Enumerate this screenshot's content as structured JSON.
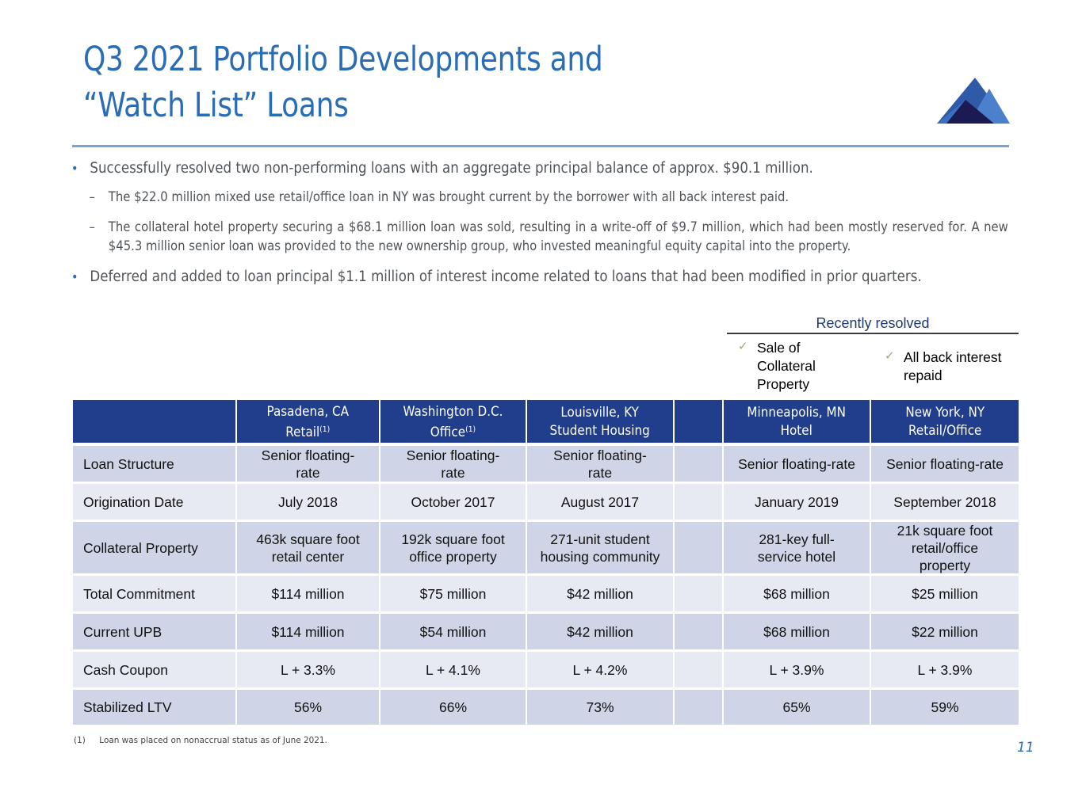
{
  "header": {
    "title_line1": "Q3 2021 Portfolio Developments and",
    "title_line2": "“Watch List” Loans",
    "logo_icon": "mountain-logo-icon"
  },
  "bullets": {
    "b1": "Successfully resolved two non-performing loans with an aggregate principal balance of approx. $90.1 million.",
    "b1_sub1": "The $22.0 million mixed use retail/office loan in NY was brought current by the borrower with all back interest paid.",
    "b1_sub2": "The collateral hotel property securing a $68.1 million loan was sold, resulting in a write-off of $9.7 million, which had been mostly reserved for.  A new $45.3 million senior loan was provided to the new ownership group, who invested meaningful equity capital into the property.",
    "b2": "Deferred and added to loan principal $1.1 million of interest income related to loans that had been modified in prior quarters.",
    "bullet_glyph": "•",
    "dash_glyph": "–"
  },
  "resolved": {
    "title": "Recently resolved",
    "check_glyph": "✓",
    "items": [
      "Sale of Collateral Property",
      "All back interest repaid"
    ]
  },
  "table": {
    "columns": [
      {
        "line1": "Pasadena, CA",
        "line2": "Retail",
        "note": "(1)"
      },
      {
        "line1": "Washington D.C.",
        "line2": "Office",
        "note": "(1)"
      },
      {
        "line1": "Louisville, KY",
        "line2": "Student Housing",
        "note": ""
      },
      {
        "line1": "Minneapolis, MN",
        "line2": "Hotel",
        "note": ""
      },
      {
        "line1": "New York, NY",
        "line2": "Retail/Office",
        "note": ""
      }
    ],
    "rows": [
      {
        "label": "Loan Structure",
        "values": [
          "Senior floating-rate",
          "Senior floating-rate",
          "Senior floating-rate",
          "Senior floating-rate",
          "Senior floating-rate"
        ]
      },
      {
        "label": "Origination Date",
        "values": [
          "July 2018",
          "October 2017",
          "August 2017",
          "January 2019",
          "September 2018"
        ]
      },
      {
        "label": "Collateral Property",
        "values": [
          "463k square foot retail center",
          "192k square foot office property",
          "271-unit student housing community",
          "281-key full-service hotel",
          "21k square foot retail/office property"
        ]
      },
      {
        "label": "Total Commitment",
        "values": [
          "$114 million",
          "$75 million",
          "$42 million",
          "$68 million",
          "$25 million"
        ]
      },
      {
        "label": "Current UPB",
        "values": [
          "$114 million",
          "$54 million",
          "$42 million",
          "$68 million",
          "$22 million"
        ]
      },
      {
        "label": "Cash Coupon",
        "values": [
          "L + 3.3%",
          "L + 4.1%",
          "L + 4.2%",
          "L + 3.9%",
          "L + 3.9%"
        ]
      },
      {
        "label": "Stabilized LTV",
        "values": [
          "56%",
          "66%",
          "73%",
          "65%",
          "59%"
        ]
      }
    ]
  },
  "footnote": {
    "number": "(1)",
    "text": "Loan was placed on nonaccrual status as of June 2021."
  },
  "page_number": "11",
  "colors": {
    "title_blue": "#2a6db4",
    "header_navy": "#213e8d",
    "row_dark": "#cfd5e6",
    "row_light": "#e8eaf3",
    "check_green": "#9aaa70"
  }
}
